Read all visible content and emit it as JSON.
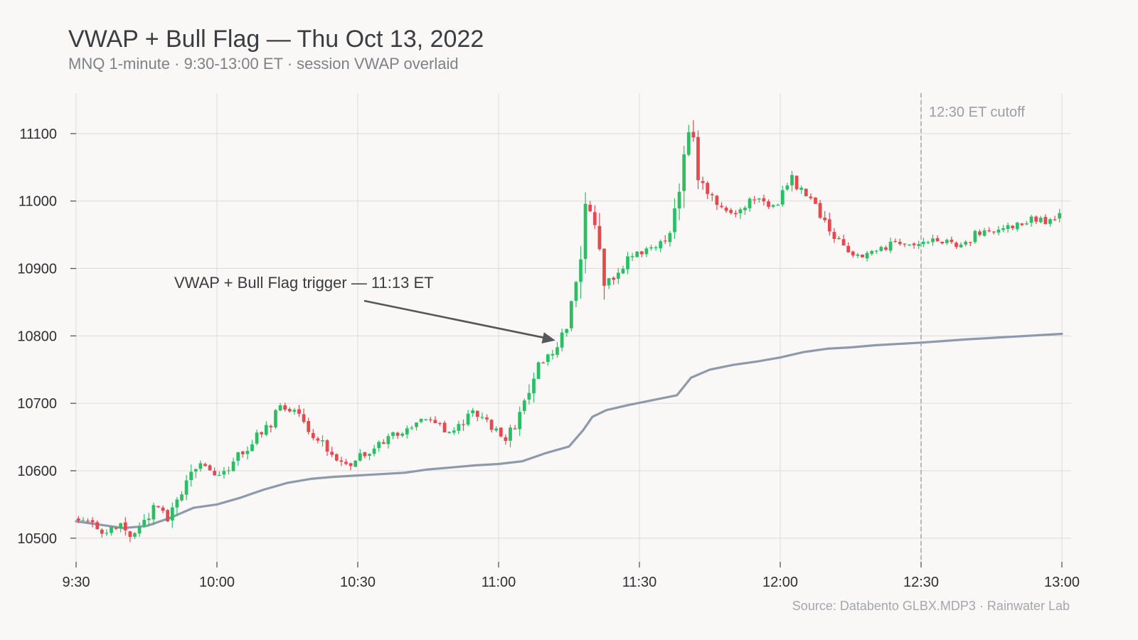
{
  "title": "VWAP + Bull Flag — Thu Oct 13, 2022",
  "subtitle": "MNQ 1-minute  ·  9:30-13:00 ET  ·  session VWAP overlaid",
  "source": "Source: Databento GLBX.MDP3  ·  Rainwater Lab",
  "colors": {
    "up": "#2dbe64",
    "down": "#e5484d",
    "vwap": "#8e9aab",
    "grid": "#dcdcdc",
    "annotation": "#55575c",
    "cutoff": "#a8a8a8"
  },
  "chart_data": {
    "type": "candlestick",
    "x_unit": "ET time",
    "xlim": [
      "9:30",
      "13:00"
    ],
    "ylim": [
      10465,
      11160
    ],
    "x_ticks": [
      "9:30",
      "10:00",
      "10:30",
      "11:00",
      "11:30",
      "12:00",
      "12:30",
      "13:00"
    ],
    "y_ticks": [
      10500,
      10600,
      10700,
      10800,
      10900,
      11000,
      11100
    ],
    "grid": true,
    "series": [
      {
        "name": "",
        "kind": "candles",
        "price_path": [
          [
            "9:30",
            10530
          ],
          [
            "9:33",
            10525
          ],
          [
            "9:36",
            10505
          ],
          [
            "9:40",
            10520
          ],
          [
            "9:42",
            10505
          ],
          [
            "9:44",
            10520
          ],
          [
            "9:47",
            10545
          ],
          [
            "9:50",
            10530
          ],
          [
            "9:53",
            10575
          ],
          [
            "9:56",
            10610
          ],
          [
            "10:00",
            10595
          ],
          [
            "10:03",
            10605
          ],
          [
            "10:06",
            10630
          ],
          [
            "10:09",
            10650
          ],
          [
            "10:12",
            10670
          ],
          [
            "10:14",
            10695
          ],
          [
            "10:17",
            10690
          ],
          [
            "10:20",
            10660
          ],
          [
            "10:23",
            10640
          ],
          [
            "10:26",
            10615
          ],
          [
            "10:28",
            10605
          ],
          [
            "10:31",
            10620
          ],
          [
            "10:34",
            10635
          ],
          [
            "10:37",
            10650
          ],
          [
            "10:40",
            10660
          ],
          [
            "10:43",
            10672
          ],
          [
            "10:46",
            10675
          ],
          [
            "10:49",
            10660
          ],
          [
            "10:52",
            10665
          ],
          [
            "10:55",
            10690
          ],
          [
            "10:57",
            10680
          ],
          [
            "11:00",
            10655
          ],
          [
            "11:02",
            10648
          ],
          [
            "11:04",
            10670
          ],
          [
            "11:07",
            10720
          ],
          [
            "11:09",
            10755
          ],
          [
            "11:11",
            10770
          ],
          [
            "11:13",
            10785
          ],
          [
            "11:15",
            10820
          ],
          [
            "11:17",
            10890
          ],
          [
            "11:19",
            10990
          ],
          [
            "11:21",
            10960
          ],
          [
            "11:23",
            10890
          ],
          [
            "11:25",
            10878
          ],
          [
            "11:28",
            10912
          ],
          [
            "11:31",
            10925
          ],
          [
            "11:34",
            10930
          ],
          [
            "11:37",
            10955
          ],
          [
            "11:39",
            11030
          ],
          [
            "11:41",
            11110
          ],
          [
            "11:43",
            11040
          ],
          [
            "11:45",
            11010
          ],
          [
            "11:48",
            10985
          ],
          [
            "11:51",
            10980
          ],
          [
            "11:54",
            11005
          ],
          [
            "11:57",
            10995
          ],
          [
            "12:00",
            10995
          ],
          [
            "12:03",
            11030
          ],
          [
            "12:06",
            11010
          ],
          [
            "12:09",
            10980
          ],
          [
            "12:12",
            10945
          ],
          [
            "12:15",
            10925
          ],
          [
            "12:18",
            10920
          ],
          [
            "12:21",
            10925
          ],
          [
            "12:24",
            10935
          ],
          [
            "12:27",
            10940
          ],
          [
            "12:30",
            10935
          ],
          [
            "12:33",
            10945
          ],
          [
            "12:36",
            10940
          ],
          [
            "12:39",
            10935
          ],
          [
            "12:42",
            10950
          ],
          [
            "12:45",
            10955
          ],
          [
            "12:48",
            10960
          ],
          [
            "12:51",
            10965
          ],
          [
            "12:54",
            10975
          ],
          [
            "12:57",
            10968
          ],
          [
            "13:00",
            10980
          ]
        ]
      },
      {
        "name": "",
        "kind": "vwap",
        "points": [
          [
            "9:30",
            10525
          ],
          [
            "9:35",
            10520
          ],
          [
            "9:40",
            10515
          ],
          [
            "9:45",
            10518
          ],
          [
            "9:50",
            10530
          ],
          [
            "9:55",
            10545
          ],
          [
            "10:00",
            10550
          ],
          [
            "10:05",
            10560
          ],
          [
            "10:10",
            10572
          ],
          [
            "10:15",
            10582
          ],
          [
            "10:20",
            10588
          ],
          [
            "10:25",
            10591
          ],
          [
            "10:30",
            10593
          ],
          [
            "10:35",
            10595
          ],
          [
            "10:40",
            10597
          ],
          [
            "10:45",
            10602
          ],
          [
            "10:50",
            10605
          ],
          [
            "10:55",
            10608
          ],
          [
            "11:00",
            10610
          ],
          [
            "11:05",
            10614
          ],
          [
            "11:10",
            10626
          ],
          [
            "11:15",
            10636
          ],
          [
            "11:18",
            10660
          ],
          [
            "11:20",
            10680
          ],
          [
            "11:23",
            10690
          ],
          [
            "11:28",
            10698
          ],
          [
            "11:33",
            10705
          ],
          [
            "11:38",
            10712
          ],
          [
            "11:41",
            10738
          ],
          [
            "11:45",
            10750
          ],
          [
            "11:50",
            10757
          ],
          [
            "11:55",
            10762
          ],
          [
            "12:00",
            10768
          ],
          [
            "12:05",
            10776
          ],
          [
            "12:10",
            10781
          ],
          [
            "12:15",
            10783
          ],
          [
            "12:20",
            10786
          ],
          [
            "12:25",
            10788
          ],
          [
            "12:30",
            10790
          ],
          [
            "12:40",
            10795
          ],
          [
            "12:50",
            10799
          ],
          [
            "13:00",
            10803
          ]
        ]
      }
    ],
    "annotations": [
      {
        "text": "VWAP + Bull Flag trigger — 11:13 ET",
        "arrow_to": [
          "11:13",
          10789
        ]
      },
      {
        "text": "12:30 ET cutoff",
        "vertical_line_at": "12:30"
      }
    ],
    "xlabel": "",
    "ylabel": ""
  }
}
